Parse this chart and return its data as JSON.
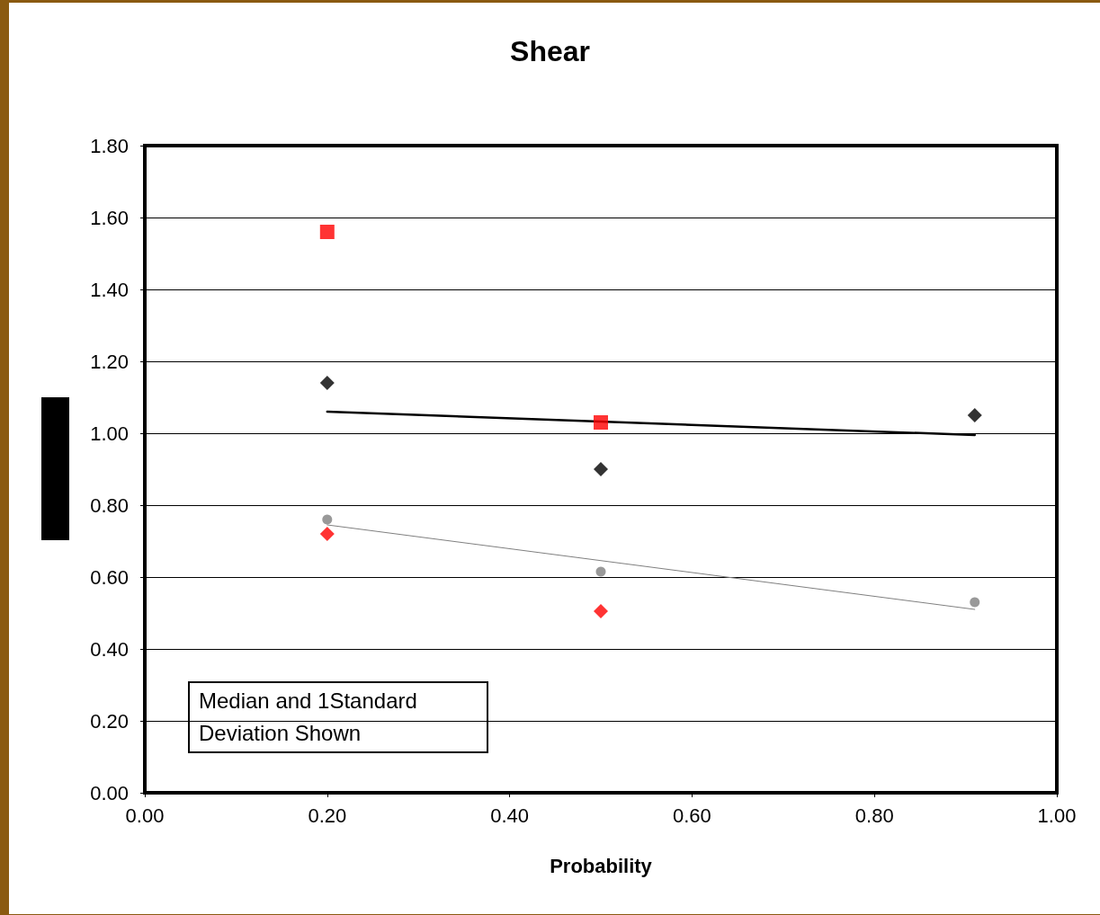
{
  "chart_data": {
    "type": "scatter",
    "title": "Shear",
    "xlabel": "Probability",
    "xlim": [
      0,
      1
    ],
    "xticks": [
      {
        "value": 0,
        "label": "0.00"
      },
      {
        "value": 0.2,
        "label": "0.20"
      },
      {
        "value": 0.4,
        "label": "0.40"
      },
      {
        "value": 0.6,
        "label": "0.60"
      },
      {
        "value": 0.8,
        "label": "0.80"
      },
      {
        "value": 1,
        "label": "1.00"
      }
    ],
    "ylim": [
      0,
      1.8
    ],
    "yticks": [
      {
        "value": 0,
        "label": "0.00"
      },
      {
        "value": 0.2,
        "label": "0.20"
      },
      {
        "value": 0.4,
        "label": "0.40"
      },
      {
        "value": 0.6,
        "label": "0.60"
      },
      {
        "value": 0.8,
        "label": "0.80"
      },
      {
        "value": 1,
        "label": "1.00"
      },
      {
        "value": 1.2,
        "label": "1.20"
      },
      {
        "value": 1.4,
        "label": "1.40"
      },
      {
        "value": 1.6,
        "label": "1.60"
      },
      {
        "value": 1.8,
        "label": "1.80"
      }
    ],
    "grid": "y",
    "annotations": [
      "Median and 1Standard Deviation Shown"
    ],
    "series": [
      {
        "marker": "square",
        "color": "#ff0000",
        "x": [
          0.2,
          0.5
        ],
        "values": [
          1.56,
          1.03
        ]
      },
      {
        "marker": "diamond",
        "color": "#000000",
        "x": [
          0.2,
          0.5,
          0.91
        ],
        "values": [
          1.14,
          0.9,
          1.05
        ]
      },
      {
        "marker": "circle",
        "color": "#808080",
        "x": [
          0.2,
          0.5,
          0.91
        ],
        "values": [
          0.76,
          0.615,
          0.53
        ]
      },
      {
        "marker": "diamond",
        "color": "#ff0000",
        "x": [
          0.2,
          0.5
        ],
        "values": [
          0.72,
          0.505
        ]
      },
      {
        "type": "line",
        "marker": "none",
        "color": "#000000",
        "x": [
          0.2,
          0.91
        ],
        "values": [
          1.06,
          0.995
        ]
      },
      {
        "type": "line",
        "marker": "none",
        "color": "#808080",
        "x": [
          0.2,
          0.91
        ],
        "values": [
          0.745,
          0.51
        ]
      }
    ]
  }
}
